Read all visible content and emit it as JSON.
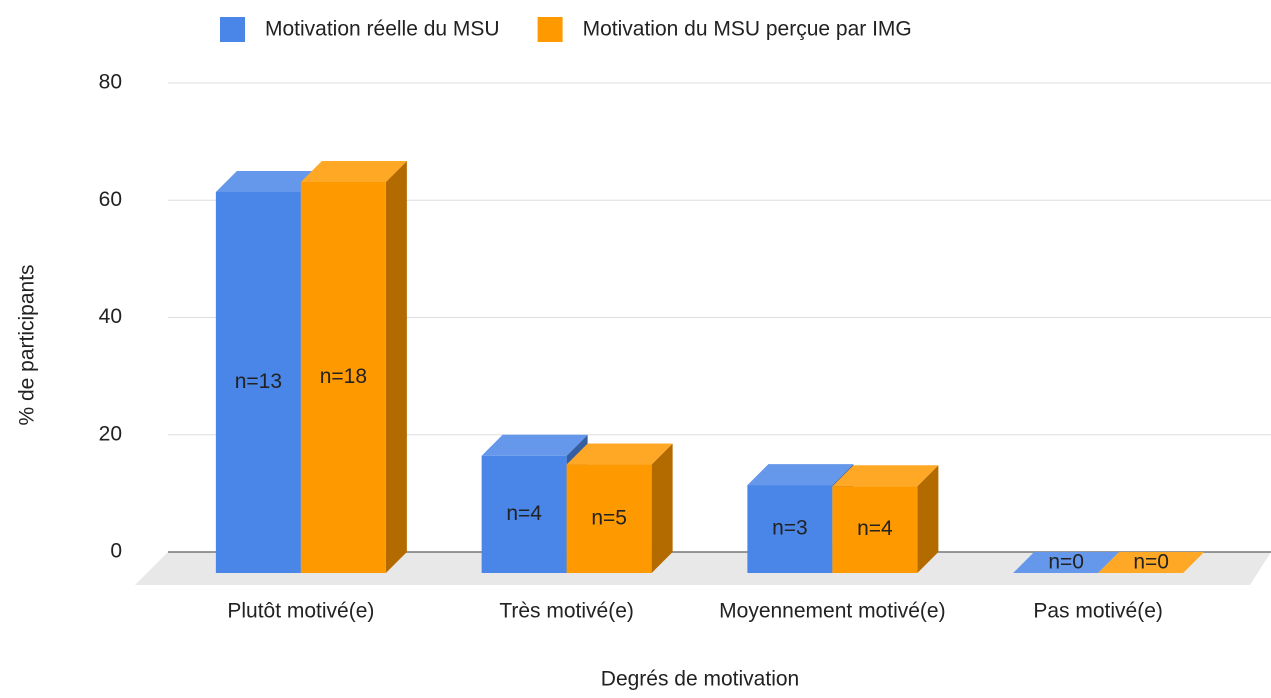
{
  "chart_data": {
    "type": "bar3d",
    "xlabel": "Degrés de motivation",
    "ylabel": "% de participants",
    "categories": [
      "Plutôt motivé(e)",
      "Très motivé(e)",
      "Moyennement motivé(e)",
      "Pas motivé(e)"
    ],
    "series": [
      {
        "name": "Motivation réelle du MSU",
        "color": "#4a86e8",
        "values": [
          65,
          20,
          15,
          0
        ],
        "value_labels": [
          "n=13",
          "n=4",
          "n=3",
          "n=0"
        ]
      },
      {
        "name": "Motivation du MSU perçue par IMG",
        "color": "#ff9900",
        "values": [
          66.7,
          18.5,
          14.8,
          0
        ],
        "value_labels": [
          "n=18",
          "n=5",
          "n=4",
          "n=0"
        ]
      }
    ],
    "ylim": [
      0,
      80
    ],
    "yticks": [
      0,
      20,
      40,
      60,
      80
    ],
    "grid": true,
    "legend": "top"
  }
}
